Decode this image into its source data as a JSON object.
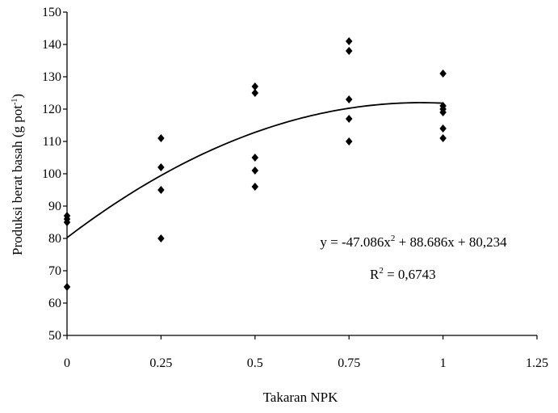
{
  "chart_data": {
    "type": "scatter",
    "title": "",
    "xlabel": "Takaran NPK",
    "ylabel_main": "Produksi berat basah (g pot",
    "ylabel_sup": "-1",
    "ylabel_close": ")",
    "xlim": [
      0,
      1.25
    ],
    "ylim": [
      50,
      150
    ],
    "x_ticks": [
      0,
      0.25,
      0.5,
      0.75,
      1,
      1.25
    ],
    "x_tick_labels": [
      "0",
      "0.25",
      "0.5",
      "0.75",
      "1",
      "1.25"
    ],
    "y_ticks": [
      50,
      60,
      70,
      80,
      90,
      100,
      110,
      120,
      130,
      140,
      150
    ],
    "y_tick_labels": [
      "50",
      "60",
      "70",
      "80",
      "90",
      "100",
      "110",
      "120",
      "130",
      "140",
      "150"
    ],
    "grid": false,
    "marker": "diamond",
    "points": [
      {
        "x": 0,
        "y": 87
      },
      {
        "x": 0,
        "y": 86
      },
      {
        "x": 0,
        "y": 85
      },
      {
        "x": 0,
        "y": 65
      },
      {
        "x": 0.25,
        "y": 111
      },
      {
        "x": 0.25,
        "y": 102
      },
      {
        "x": 0.25,
        "y": 95
      },
      {
        "x": 0.25,
        "y": 80
      },
      {
        "x": 0.5,
        "y": 127
      },
      {
        "x": 0.5,
        "y": 125
      },
      {
        "x": 0.5,
        "y": 105
      },
      {
        "x": 0.5,
        "y": 101
      },
      {
        "x": 0.5,
        "y": 96
      },
      {
        "x": 0.75,
        "y": 141
      },
      {
        "x": 0.75,
        "y": 138
      },
      {
        "x": 0.75,
        "y": 123
      },
      {
        "x": 0.75,
        "y": 117
      },
      {
        "x": 0.75,
        "y": 110
      },
      {
        "x": 1,
        "y": 131
      },
      {
        "x": 1,
        "y": 121
      },
      {
        "x": 1,
        "y": 120
      },
      {
        "x": 1,
        "y": 119
      },
      {
        "x": 1,
        "y": 114
      },
      {
        "x": 1,
        "y": 111
      }
    ],
    "trendline": {
      "type": "polynomial",
      "a": -47.086,
      "b": 88.686,
      "c": 80.234,
      "x_range": [
        0,
        1
      ],
      "equation_text": "y = -47.086x",
      "equation_sup": "2",
      "equation_rest": " + 88.686x + 80,234",
      "r2_main": "R",
      "r2_sup": "2",
      "r2_rest": " = 0,6743"
    }
  }
}
